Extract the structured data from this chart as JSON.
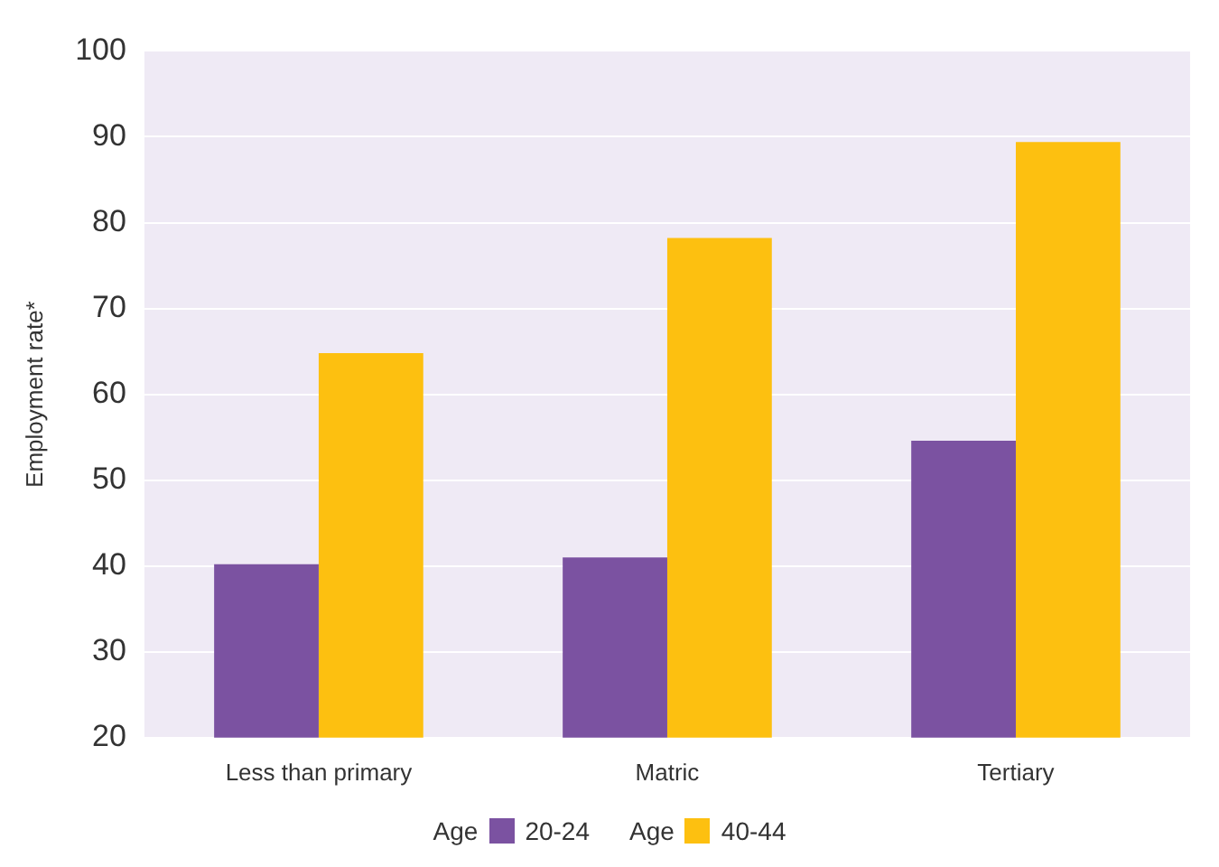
{
  "chart_data": {
    "type": "bar",
    "ylabel": "Employment rate*",
    "legend_title": "Age",
    "categories": [
      "Less than primary",
      "Matric",
      "Tertiary"
    ],
    "series": [
      {
        "name": "20-24",
        "color": "#7b52a1",
        "values": [
          40.2,
          41,
          54.6
        ]
      },
      {
        "name": "40-44",
        "color": "#fdc010",
        "values": [
          64.8,
          78.2,
          89.4
        ]
      }
    ],
    "ylim": [
      20,
      100
    ],
    "yticks": [
      20,
      30,
      40,
      50,
      60,
      70,
      80,
      90,
      100
    ],
    "grid": "y",
    "legend": "bottom"
  }
}
